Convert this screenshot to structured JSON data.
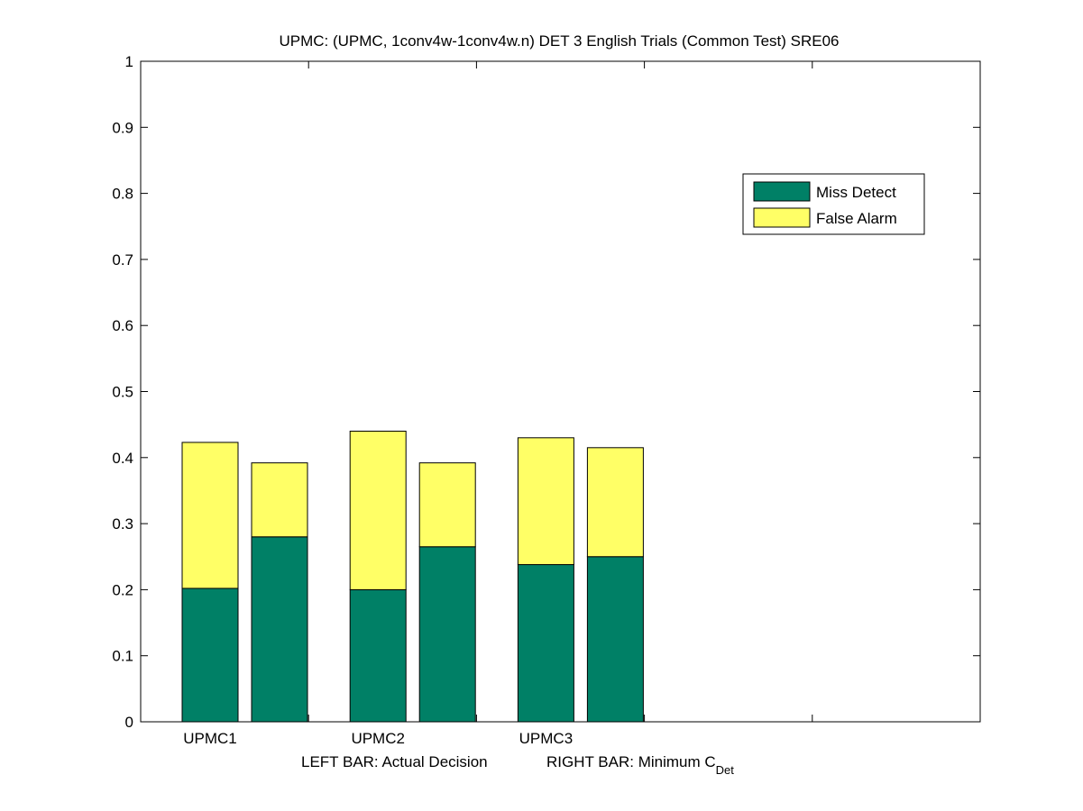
{
  "chart_data": {
    "type": "bar",
    "stacked": true,
    "title": "UPMC: (UPMC, 1conv4w-1conv4w.n) DET 3 English Trials (Common Test) SRE06",
    "xlabel": {
      "left": "LEFT BAR: Actual Decision",
      "right_main": "RIGHT BAR: Minimum C",
      "right_sub": "Det"
    },
    "ylim": [
      0,
      1
    ],
    "yticks": [
      "0",
      "0.1",
      "0.2",
      "0.3",
      "0.4",
      "0.5",
      "0.6",
      "0.7",
      "0.8",
      "0.9",
      "1"
    ],
    "categories": [
      "UPMC1",
      "UPMC2",
      "UPMC3",
      "",
      ""
    ],
    "bars_per_category": [
      "Actual Decision",
      "Minimum C_Det"
    ],
    "series": [
      {
        "name": "Miss Detect",
        "color": "#008066",
        "values": [
          [
            0.202,
            0.28
          ],
          [
            0.2,
            0.265
          ],
          [
            0.238,
            0.25
          ]
        ]
      },
      {
        "name": "False Alarm",
        "color": "#ffff66",
        "values": [
          [
            0.221,
            0.112
          ],
          [
            0.24,
            0.127
          ],
          [
            0.192,
            0.165
          ]
        ]
      }
    ],
    "grid": false,
    "legend_position": "top-right"
  }
}
